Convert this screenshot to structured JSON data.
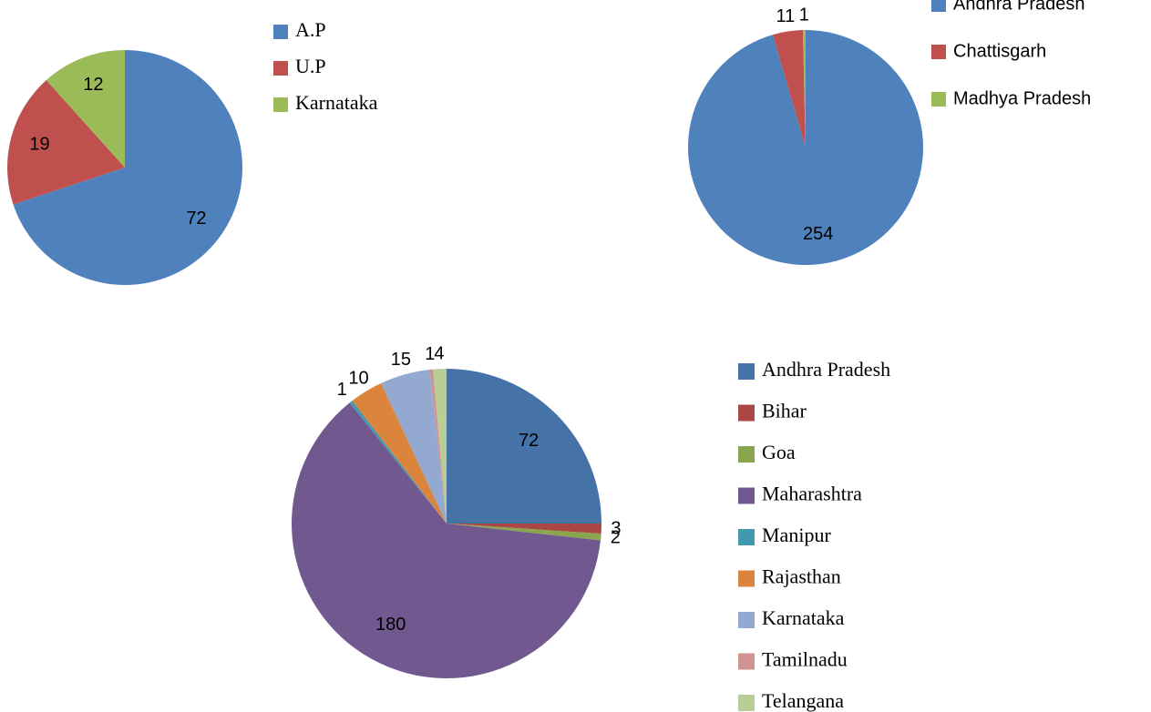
{
  "chart_data": [
    {
      "type": "pie",
      "categories": [
        "A.P",
        "U.P",
        "Karnataka"
      ],
      "values": [
        72,
        19,
        12
      ],
      "colors": [
        "#4f81bd",
        "#c0504d",
        "#9bbb59"
      ],
      "legend": "right"
    },
    {
      "type": "pie",
      "categories": [
        "Andhra Pradesh",
        "Chattisgarh",
        "Madhya Pradesh"
      ],
      "values": [
        254,
        11,
        1
      ],
      "colors": [
        "#4f81bd",
        "#c0504d",
        "#9bbb59"
      ],
      "legend": "right"
    },
    {
      "type": "pie",
      "categories": [
        "Andhra Pradesh",
        "Bihar",
        "Goa",
        "Maharashtra",
        "Manipur",
        "Rajasthan",
        "Karnataka",
        "Tamilnadu",
        "Telangana"
      ],
      "values": [
        72,
        3,
        2,
        180,
        1,
        10,
        15,
        1,
        4
      ],
      "colors": [
        "#4572a7",
        "#aa4643",
        "#89a54e",
        "#71588f",
        "#4198af",
        "#db843d",
        "#93a9cf",
        "#d19392",
        "#b9cd96"
      ],
      "legend": "right"
    }
  ]
}
